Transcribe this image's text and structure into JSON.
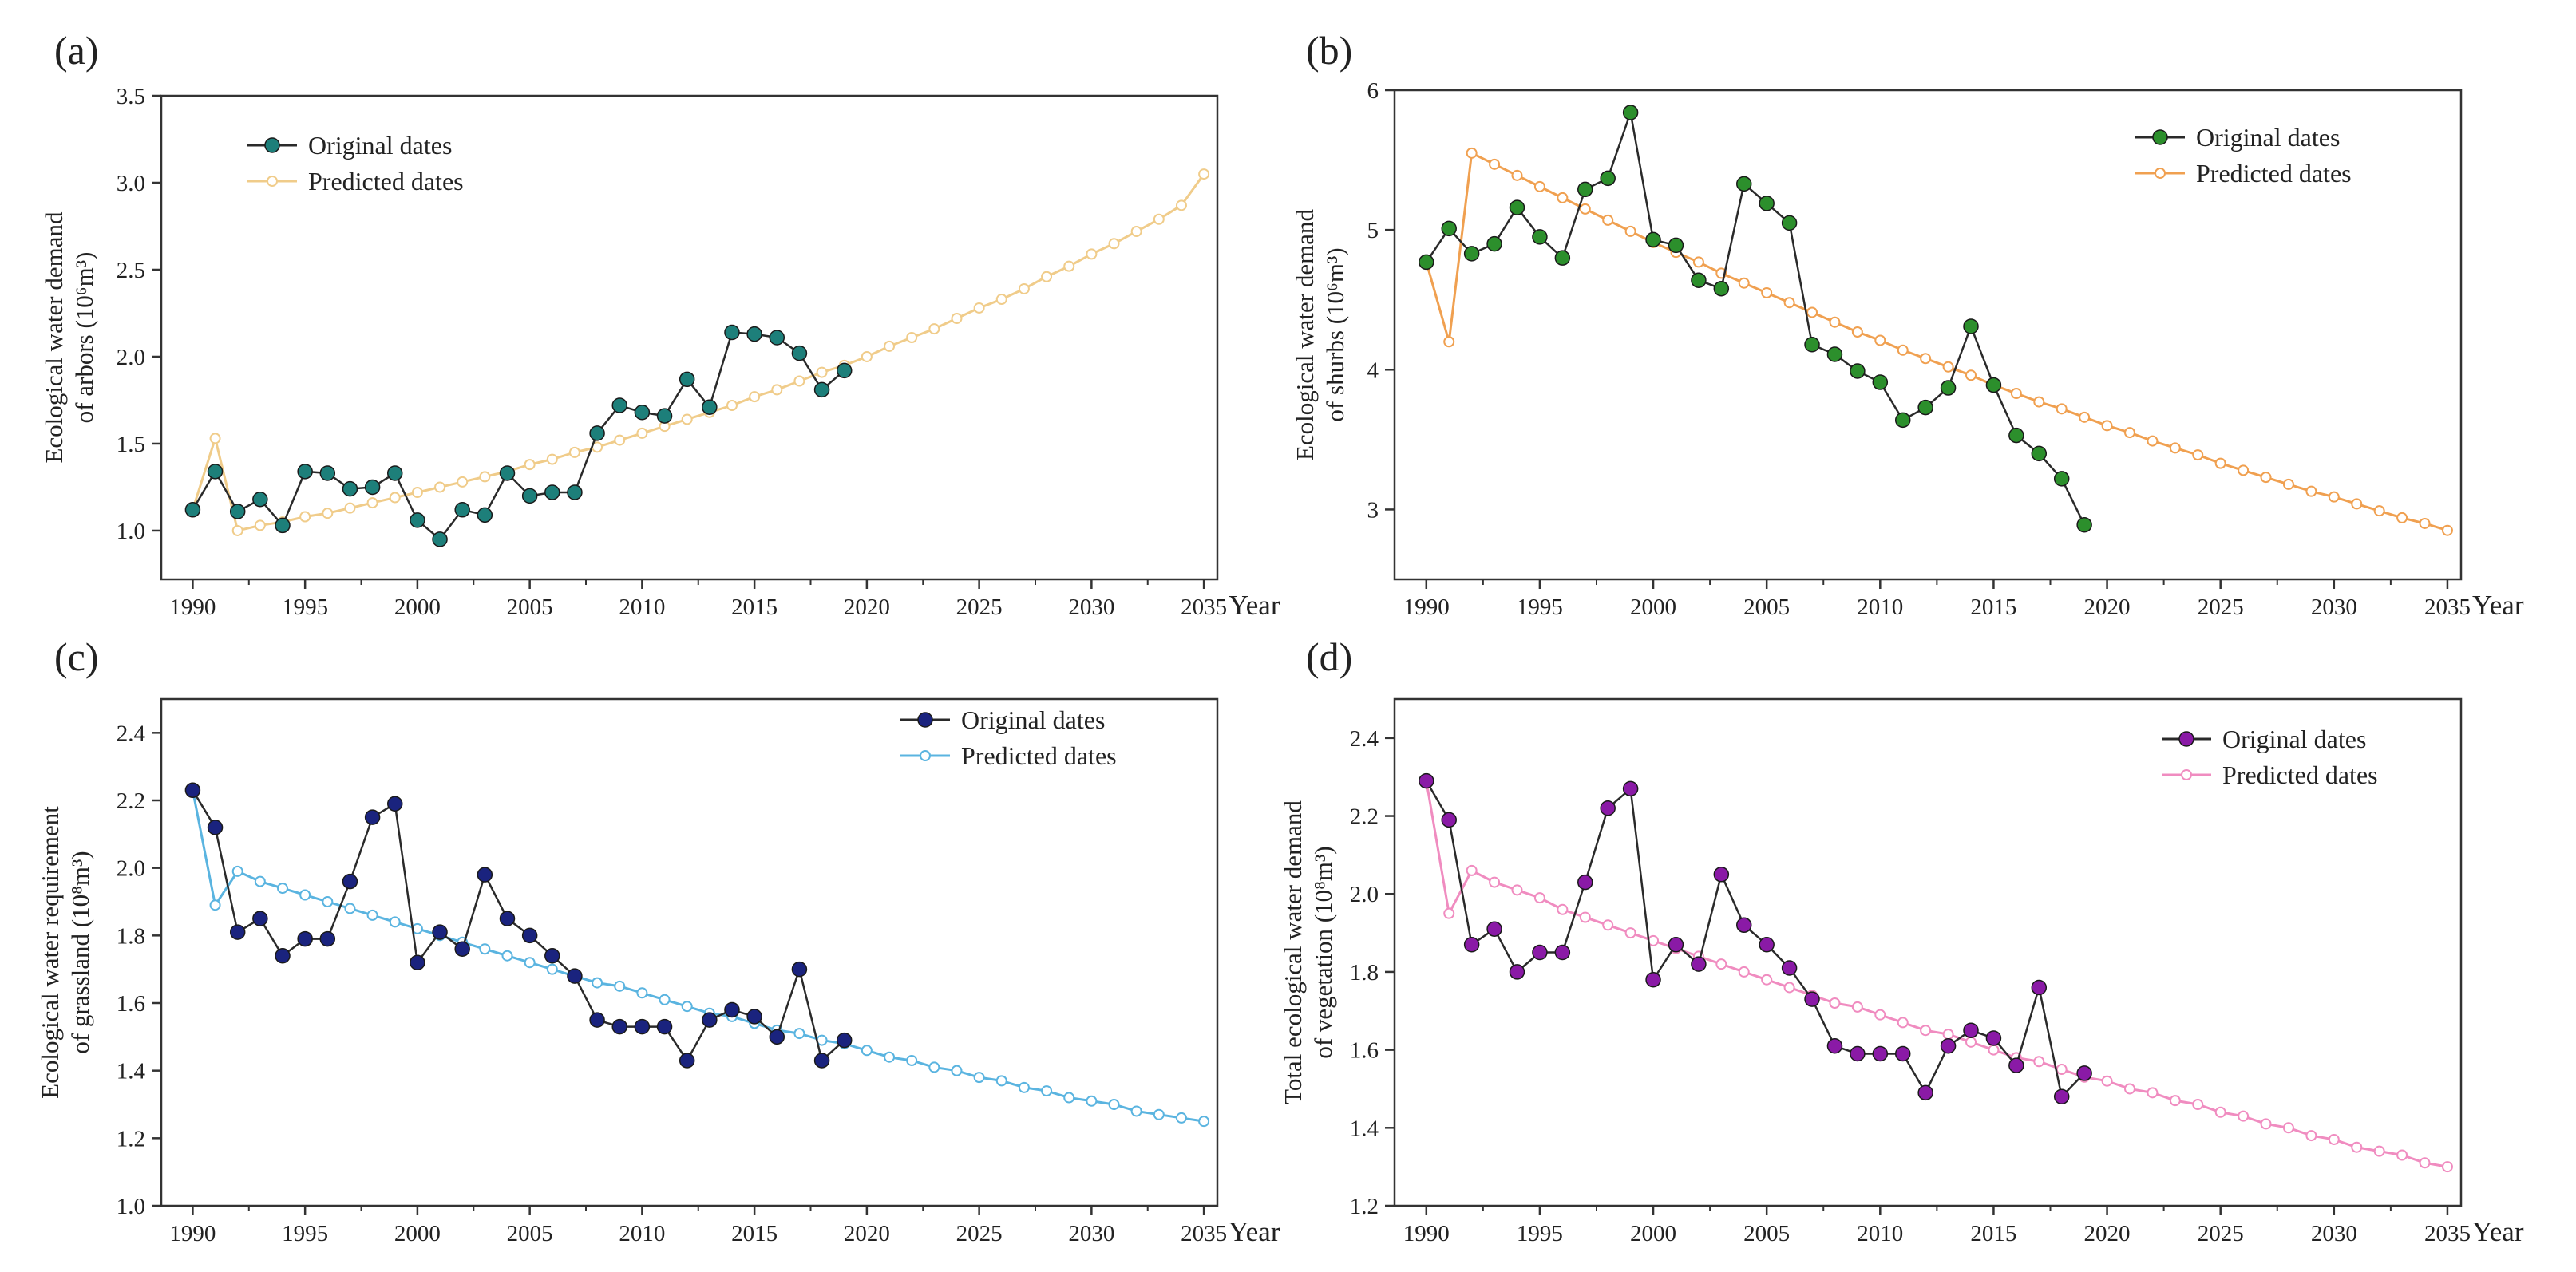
{
  "chart_data": [
    {
      "panel_label": "(a)",
      "type": "line",
      "title": "",
      "xlabel": "Year",
      "ylabel_line1": "Ecological water demand",
      "ylabel_line2": "of arbors (10⁶m³)",
      "xlim": [
        1988.6,
        2035.6
      ],
      "ylim": [
        0.72,
        3.5
      ],
      "xticks": [
        "1990",
        "1995",
        "2000",
        "2005",
        "2010",
        "2015",
        "2020",
        "2025",
        "2030",
        "2035"
      ],
      "yticks": [
        "1.0",
        "1.5",
        "2.0",
        "2.5",
        "3.0",
        "3.5"
      ],
      "grid": false,
      "legend_position": "top-left",
      "series": [
        {
          "name": "Original dates",
          "color": "#1d7f7a",
          "marker": "filled-circle",
          "x": [
            1990,
            1991,
            1992,
            1993,
            1994,
            1995,
            1996,
            1997,
            1998,
            1999,
            2000,
            2001,
            2002,
            2003,
            2004,
            2005,
            2006,
            2007,
            2008,
            2009,
            2010,
            2011,
            2012,
            2013,
            2014,
            2015,
            2016,
            2017,
            2018,
            2019
          ],
          "values": [
            1.12,
            1.34,
            1.11,
            1.18,
            1.03,
            1.34,
            1.33,
            1.24,
            1.25,
            1.33,
            1.06,
            0.95,
            1.12,
            1.09,
            1.33,
            1.2,
            1.22,
            1.22,
            1.56,
            1.72,
            1.68,
            1.66,
            1.87,
            1.71,
            2.14,
            2.13,
            2.11,
            2.02,
            1.81,
            1.92
          ]
        },
        {
          "name": "Predicted dates",
          "color": "#f0cc8a",
          "marker": "open-circle",
          "x": [
            1990,
            1991,
            1992,
            1993,
            1994,
            1995,
            1996,
            1997,
            1998,
            1999,
            2000,
            2001,
            2002,
            2003,
            2004,
            2005,
            2006,
            2007,
            2008,
            2009,
            2010,
            2011,
            2012,
            2013,
            2014,
            2015,
            2016,
            2017,
            2018,
            2019,
            2020,
            2021,
            2022,
            2023,
            2024,
            2025,
            2026,
            2027,
            2028,
            2029,
            2030,
            2031,
            2032,
            2033,
            2034,
            2035
          ],
          "values": [
            1.12,
            1.53,
            1.0,
            1.03,
            1.05,
            1.08,
            1.1,
            1.13,
            1.16,
            1.19,
            1.22,
            1.25,
            1.28,
            1.31,
            1.34,
            1.38,
            1.41,
            1.45,
            1.48,
            1.52,
            1.56,
            1.6,
            1.64,
            1.68,
            1.72,
            1.77,
            1.81,
            1.86,
            1.91,
            1.95,
            2.0,
            2.06,
            2.11,
            2.16,
            2.22,
            2.28,
            2.33,
            2.39,
            2.46,
            2.52,
            2.59,
            2.65,
            2.72,
            2.79,
            2.87,
            3.05
          ]
        }
      ]
    },
    {
      "panel_label": "(b)",
      "type": "line",
      "title": "",
      "xlabel": "Year",
      "ylabel_line1": "Ecological water demand",
      "ylabel_line2": "of shurbs (10⁶m³)",
      "xlim": [
        1988.6,
        2035.6
      ],
      "ylim": [
        2.5,
        6.0
      ],
      "xticks": [
        "1990",
        "1995",
        "2000",
        "2005",
        "2010",
        "2015",
        "2020",
        "2025",
        "2030",
        "2035"
      ],
      "yticks": [
        "3",
        "4",
        "5",
        "6"
      ],
      "grid": false,
      "legend_position": "top-right",
      "series": [
        {
          "name": "Original dates",
          "color": "#2c8f2c",
          "marker": "filled-circle",
          "x": [
            1990,
            1991,
            1992,
            1993,
            1994,
            1995,
            1996,
            1997,
            1998,
            1999,
            2000,
            2001,
            2002,
            2003,
            2004,
            2005,
            2006,
            2007,
            2008,
            2009,
            2010,
            2011,
            2012,
            2013,
            2014,
            2015,
            2016,
            2017,
            2018,
            2019
          ],
          "values": [
            4.77,
            5.01,
            4.83,
            4.9,
            5.16,
            4.95,
            4.8,
            5.29,
            5.37,
            5.84,
            4.93,
            4.89,
            4.64,
            4.58,
            5.33,
            5.19,
            5.05,
            4.18,
            4.11,
            3.99,
            3.91,
            3.64,
            3.73,
            3.87,
            4.31,
            3.89,
            3.53,
            3.4,
            3.22,
            2.89
          ]
        },
        {
          "name": "Predicted dates",
          "color": "#f0a050",
          "marker": "open-circle",
          "x": [
            1990,
            1991,
            1992,
            1993,
            1994,
            1995,
            1996,
            1997,
            1998,
            1999,
            2000,
            2001,
            2002,
            2003,
            2004,
            2005,
            2006,
            2007,
            2008,
            2009,
            2010,
            2011,
            2012,
            2013,
            2014,
            2015,
            2016,
            2017,
            2018,
            2019,
            2020,
            2021,
            2022,
            2023,
            2024,
            2025,
            2026,
            2027,
            2028,
            2029,
            2030,
            2031,
            2032,
            2033,
            2034,
            2035
          ],
          "values": [
            4.77,
            4.2,
            5.55,
            5.47,
            5.39,
            5.31,
            5.23,
            5.15,
            5.07,
            4.99,
            4.91,
            4.84,
            4.77,
            4.69,
            4.62,
            4.55,
            4.48,
            4.41,
            4.34,
            4.27,
            4.21,
            4.14,
            4.08,
            4.02,
            3.96,
            3.89,
            3.83,
            3.77,
            3.72,
            3.66,
            3.6,
            3.55,
            3.49,
            3.44,
            3.39,
            3.33,
            3.28,
            3.23,
            3.18,
            3.13,
            3.09,
            3.04,
            2.99,
            2.94,
            2.9,
            2.85
          ]
        }
      ]
    },
    {
      "panel_label": "(c)",
      "type": "line",
      "title": "",
      "xlabel": "Year",
      "ylabel_line1": "Ecological water requirement",
      "ylabel_line2": "of grassland (10⁸m³)",
      "xlim": [
        1988.6,
        2035.6
      ],
      "ylim": [
        1.0,
        2.5
      ],
      "xticks": [
        "1990",
        "1995",
        "2000",
        "2005",
        "2010",
        "2015",
        "2020",
        "2025",
        "2030",
        "2035"
      ],
      "yticks": [
        "1.0",
        "1.2",
        "1.4",
        "1.6",
        "1.8",
        "2.0",
        "2.2",
        "2.4"
      ],
      "grid": false,
      "legend_position": "top-right",
      "series": [
        {
          "name": "Original dates",
          "color": "#1a237e",
          "marker": "filled-circle",
          "x": [
            1990,
            1991,
            1992,
            1993,
            1994,
            1995,
            1996,
            1997,
            1998,
            1999,
            2000,
            2001,
            2002,
            2003,
            2004,
            2005,
            2006,
            2007,
            2008,
            2009,
            2010,
            2011,
            2012,
            2013,
            2014,
            2015,
            2016,
            2017,
            2018,
            2019
          ],
          "values": [
            2.23,
            2.12,
            1.81,
            1.85,
            1.74,
            1.79,
            1.79,
            1.96,
            2.15,
            2.19,
            1.72,
            1.81,
            1.76,
            1.98,
            1.85,
            1.8,
            1.74,
            1.68,
            1.55,
            1.53,
            1.53,
            1.53,
            1.43,
            1.55,
            1.58,
            1.56,
            1.5,
            1.7,
            1.43,
            1.49
          ]
        },
        {
          "name": "Predicted dates",
          "color": "#5ab4e0",
          "marker": "open-circle",
          "x": [
            1990,
            1991,
            1992,
            1993,
            1994,
            1995,
            1996,
            1997,
            1998,
            1999,
            2000,
            2001,
            2002,
            2003,
            2004,
            2005,
            2006,
            2007,
            2008,
            2009,
            2010,
            2011,
            2012,
            2013,
            2014,
            2015,
            2016,
            2017,
            2018,
            2019,
            2020,
            2021,
            2022,
            2023,
            2024,
            2025,
            2026,
            2027,
            2028,
            2029,
            2030,
            2031,
            2032,
            2033,
            2034,
            2035
          ],
          "values": [
            2.23,
            1.89,
            1.99,
            1.96,
            1.94,
            1.92,
            1.9,
            1.88,
            1.86,
            1.84,
            1.82,
            1.8,
            1.78,
            1.76,
            1.74,
            1.72,
            1.7,
            1.68,
            1.66,
            1.65,
            1.63,
            1.61,
            1.59,
            1.57,
            1.56,
            1.54,
            1.52,
            1.51,
            1.49,
            1.48,
            1.46,
            1.44,
            1.43,
            1.41,
            1.4,
            1.38,
            1.37,
            1.35,
            1.34,
            1.32,
            1.31,
            1.3,
            1.28,
            1.27,
            1.26,
            1.25
          ]
        }
      ]
    },
    {
      "panel_label": "(d)",
      "type": "line",
      "title": "",
      "xlabel": "Year",
      "ylabel_line1": "Total ecological water demand",
      "ylabel_line2": "of vegetation (10⁸m³)",
      "xlim": [
        1988.6,
        2035.6
      ],
      "ylim": [
        1.2,
        2.5
      ],
      "xticks": [
        "1990",
        "1995",
        "2000",
        "2005",
        "2010",
        "2015",
        "2020",
        "2025",
        "2030",
        "2035"
      ],
      "yticks": [
        "1.2",
        "1.4",
        "1.6",
        "1.8",
        "2.0",
        "2.2",
        "2.4"
      ],
      "grid": false,
      "legend_position": "top-right",
      "series": [
        {
          "name": "Original dates",
          "color": "#8a1aa6",
          "marker": "filled-circle",
          "x": [
            1990,
            1991,
            1992,
            1993,
            1994,
            1995,
            1996,
            1997,
            1998,
            1999,
            2000,
            2001,
            2002,
            2003,
            2004,
            2005,
            2006,
            2007,
            2008,
            2009,
            2010,
            2011,
            2012,
            2013,
            2014,
            2015,
            2016,
            2017,
            2018,
            2019
          ],
          "values": [
            2.29,
            2.19,
            1.87,
            1.91,
            1.8,
            1.85,
            1.85,
            2.03,
            2.22,
            2.27,
            1.78,
            1.87,
            1.82,
            2.05,
            1.92,
            1.87,
            1.81,
            1.73,
            1.61,
            1.59,
            1.59,
            1.59,
            1.49,
            1.61,
            1.65,
            1.63,
            1.56,
            1.76,
            1.48,
            1.54
          ]
        },
        {
          "name": "Predicted dates",
          "color": "#f08cc0",
          "marker": "open-circle",
          "x": [
            1990,
            1991,
            1992,
            1993,
            1994,
            1995,
            1996,
            1997,
            1998,
            1999,
            2000,
            2001,
            2002,
            2003,
            2004,
            2005,
            2006,
            2007,
            2008,
            2009,
            2010,
            2011,
            2012,
            2013,
            2014,
            2015,
            2016,
            2017,
            2018,
            2019,
            2020,
            2021,
            2022,
            2023,
            2024,
            2025,
            2026,
            2027,
            2028,
            2029,
            2030,
            2031,
            2032,
            2033,
            2034,
            2035
          ],
          "values": [
            2.29,
            1.95,
            2.06,
            2.03,
            2.01,
            1.99,
            1.96,
            1.94,
            1.92,
            1.9,
            1.88,
            1.86,
            1.84,
            1.82,
            1.8,
            1.78,
            1.76,
            1.74,
            1.72,
            1.71,
            1.69,
            1.67,
            1.65,
            1.64,
            1.62,
            1.6,
            1.58,
            1.57,
            1.55,
            1.53,
            1.52,
            1.5,
            1.49,
            1.47,
            1.46,
            1.44,
            1.43,
            1.41,
            1.4,
            1.38,
            1.37,
            1.35,
            1.34,
            1.33,
            1.31,
            1.3
          ]
        }
      ]
    }
  ]
}
